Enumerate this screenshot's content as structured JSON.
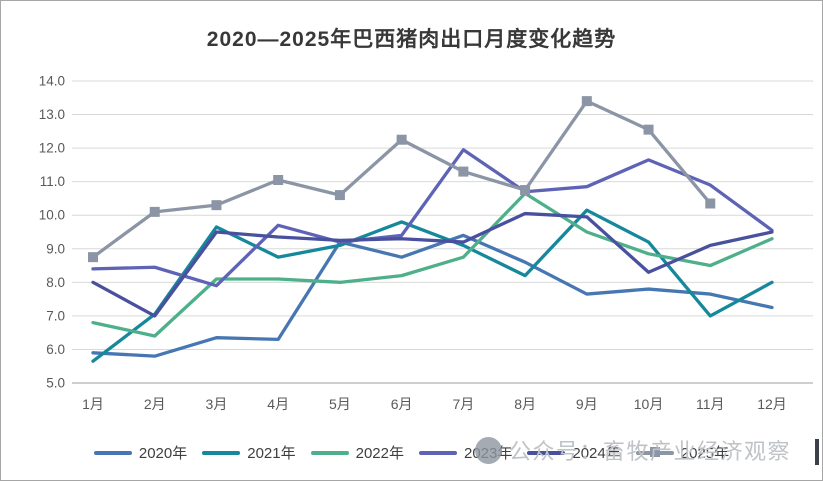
{
  "window": {
    "background": "#ffffff",
    "border_color": "#a6a6a6"
  },
  "chart_data": {
    "type": "line",
    "title": "2020—2025年巴西猪肉出口月度变化趋势",
    "xlabel": "",
    "ylabel": "",
    "ylim": [
      5.0,
      14.0
    ],
    "ytick_step": 1.0,
    "ytick_labels": [
      "5.0",
      "6.0",
      "7.0",
      "8.0",
      "9.0",
      "10.0",
      "11.0",
      "12.0",
      "13.0",
      "14.0"
    ],
    "grid": true,
    "grid_color": "#d9d9d9",
    "axis_line_color": "#bfbfbf",
    "tick_label_color": "#595959",
    "legend_position": "bottom",
    "categories": [
      "1月",
      "2月",
      "3月",
      "4月",
      "5月",
      "6月",
      "7月",
      "8月",
      "9月",
      "10月",
      "11月",
      "12月"
    ],
    "series": [
      {
        "name": "2020年",
        "color": "#4677B2",
        "marker": "none",
        "values": [
          5.9,
          5.8,
          6.35,
          6.3,
          9.2,
          8.75,
          9.4,
          8.6,
          7.65,
          7.8,
          7.65,
          7.25
        ]
      },
      {
        "name": "2021年",
        "color": "#15889C",
        "marker": "none",
        "values": [
          5.65,
          7.05,
          9.65,
          8.75,
          9.1,
          9.8,
          9.1,
          8.2,
          10.15,
          9.2,
          7.0,
          8.0
        ]
      },
      {
        "name": "2022年",
        "color": "#4EB08B",
        "marker": "none",
        "values": [
          6.8,
          6.4,
          8.1,
          8.1,
          8.0,
          8.2,
          8.75,
          10.65,
          9.5,
          8.85,
          8.5,
          9.3
        ]
      },
      {
        "name": "2023年",
        "color": "#5E63B6",
        "marker": "none",
        "values": [
          8.4,
          8.45,
          7.9,
          9.7,
          9.2,
          9.4,
          11.95,
          10.7,
          10.85,
          11.65,
          10.9,
          9.55
        ]
      },
      {
        "name": "2024年",
        "color": "#49519E",
        "marker": "none",
        "values": [
          8.0,
          7.0,
          9.5,
          9.35,
          9.25,
          9.3,
          9.2,
          10.05,
          9.95,
          8.3,
          9.1,
          9.5
        ]
      },
      {
        "name": "2025年",
        "color": "#8B95A5",
        "marker": "square",
        "values": [
          8.75,
          10.1,
          10.3,
          11.05,
          10.6,
          12.25,
          11.3,
          10.75,
          13.4,
          12.55,
          10.35,
          null
        ]
      }
    ]
  },
  "watermark": {
    "text": "公众号：畜牧产业经济观察",
    "logo_color": "#8f96a0",
    "text_color": "#bfc2c6"
  },
  "artifacts": {
    "cursor_bar_color": "#3c4049"
  }
}
